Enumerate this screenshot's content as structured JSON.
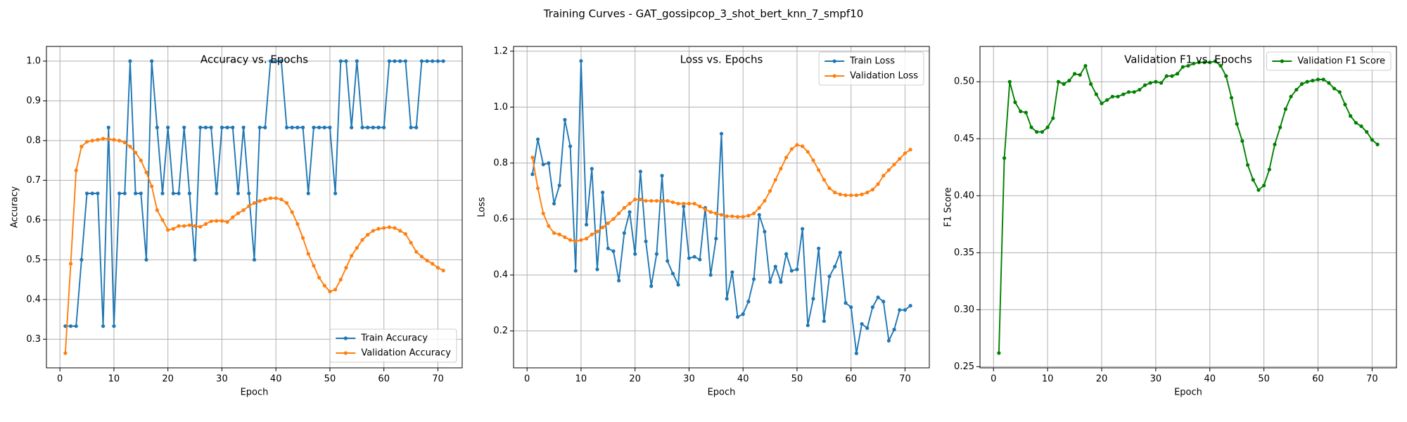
{
  "title": "Training Curves - GAT_gossipcop_3_shot_bert_knn_7_smpf10",
  "chart_data": [
    {
      "type": "line",
      "title": "Accuracy vs. Epochs",
      "xlabel": "Epoch",
      "ylabel": "Accuracy",
      "x": [
        1,
        2,
        3,
        4,
        5,
        6,
        7,
        8,
        9,
        10,
        11,
        12,
        13,
        14,
        15,
        16,
        17,
        18,
        19,
        20,
        21,
        22,
        23,
        24,
        25,
        26,
        27,
        28,
        29,
        30,
        31,
        32,
        33,
        34,
        35,
        36,
        37,
        38,
        39,
        40,
        41,
        42,
        43,
        44,
        45,
        46,
        47,
        48,
        49,
        50,
        51,
        52,
        53,
        54,
        55,
        56,
        57,
        58,
        59,
        60,
        61,
        62,
        63,
        64,
        65,
        66,
        67,
        68,
        69,
        70,
        71
      ],
      "series": [
        {
          "name": "Train Accuracy",
          "color": "#1f77b4",
          "values": [
            0.333,
            0.333,
            0.333,
            0.5,
            0.667,
            0.667,
            0.667,
            0.333,
            0.833,
            0.333,
            0.667,
            0.667,
            1.0,
            0.667,
            0.667,
            0.5,
            1.0,
            0.833,
            0.667,
            0.833,
            0.667,
            0.667,
            0.833,
            0.667,
            0.5,
            0.833,
            0.833,
            0.833,
            0.667,
            0.833,
            0.833,
            0.833,
            0.667,
            0.833,
            0.667,
            0.5,
            0.833,
            0.833,
            1.0,
            1.0,
            1.0,
            0.833,
            0.833,
            0.833,
            0.833,
            0.667,
            0.833,
            0.833,
            0.833,
            0.833,
            0.667,
            1.0,
            1.0,
            0.833,
            1.0,
            0.833,
            0.833,
            0.833,
            0.833,
            0.833,
            1.0,
            1.0,
            1.0,
            1.0,
            0.833,
            0.833,
            1.0,
            1.0,
            1.0,
            1.0,
            1.0
          ]
        },
        {
          "name": "Validation Accuracy",
          "color": "#ff7f0e",
          "values": [
            0.265,
            0.49,
            0.725,
            0.785,
            0.797,
            0.8,
            0.802,
            0.805,
            0.804,
            0.802,
            0.8,
            0.795,
            0.785,
            0.77,
            0.75,
            0.72,
            0.685,
            0.625,
            0.6,
            0.575,
            0.578,
            0.585,
            0.585,
            0.587,
            0.585,
            0.583,
            0.59,
            0.597,
            0.598,
            0.598,
            0.595,
            0.607,
            0.617,
            0.625,
            0.635,
            0.643,
            0.648,
            0.652,
            0.655,
            0.655,
            0.652,
            0.643,
            0.62,
            0.59,
            0.555,
            0.515,
            0.485,
            0.455,
            0.435,
            0.42,
            0.425,
            0.45,
            0.48,
            0.51,
            0.53,
            0.55,
            0.563,
            0.573,
            0.578,
            0.58,
            0.582,
            0.58,
            0.573,
            0.565,
            0.543,
            0.52,
            0.508,
            0.498,
            0.49,
            0.48,
            0.473
          ]
        }
      ],
      "xlim": [
        -2.5,
        74.5
      ],
      "ylim": [
        0.228,
        1.037
      ],
      "xticks": [
        0,
        10,
        20,
        30,
        40,
        50,
        60,
        70
      ],
      "yticks": [
        0.3,
        0.4,
        0.5,
        0.6,
        0.7,
        0.8,
        0.9,
        {
          "value": 1.0,
          "label": "1.0"
        }
      ],
      "grid": true,
      "legend": "lower right"
    },
    {
      "type": "line",
      "title": "Loss vs. Epochs",
      "xlabel": "Epoch",
      "ylabel": "Loss",
      "x": [
        1,
        2,
        3,
        4,
        5,
        6,
        7,
        8,
        9,
        10,
        11,
        12,
        13,
        14,
        15,
        16,
        17,
        18,
        19,
        20,
        21,
        22,
        23,
        24,
        25,
        26,
        27,
        28,
        29,
        30,
        31,
        32,
        33,
        34,
        35,
        36,
        37,
        38,
        39,
        40,
        41,
        42,
        43,
        44,
        45,
        46,
        47,
        48,
        49,
        50,
        51,
        52,
        53,
        54,
        55,
        56,
        57,
        58,
        59,
        60,
        61,
        62,
        63,
        64,
        65,
        66,
        67,
        68,
        69,
        70,
        71
      ],
      "series": [
        {
          "name": "Train Loss",
          "color": "#1f77b4",
          "values": [
            0.76,
            0.885,
            0.795,
            0.8,
            0.655,
            0.72,
            0.955,
            0.86,
            0.415,
            1.165,
            0.58,
            0.78,
            0.42,
            0.695,
            0.495,
            0.485,
            0.38,
            0.55,
            0.625,
            0.475,
            0.77,
            0.52,
            0.36,
            0.475,
            0.755,
            0.45,
            0.405,
            0.365,
            0.645,
            0.46,
            0.465,
            0.455,
            0.64,
            0.4,
            0.53,
            0.905,
            0.315,
            0.41,
            0.25,
            0.26,
            0.305,
            0.385,
            0.615,
            0.555,
            0.375,
            0.43,
            0.375,
            0.475,
            0.415,
            0.42,
            0.565,
            0.22,
            0.315,
            0.495,
            0.235,
            0.395,
            0.43,
            0.48,
            0.3,
            0.285,
            0.12,
            0.225,
            0.21,
            0.285,
            0.32,
            0.305,
            0.165,
            0.205,
            0.275,
            0.275,
            0.29
          ]
        },
        {
          "name": "Validation Loss",
          "color": "#ff7f0e",
          "values": [
            0.82,
            0.71,
            0.62,
            0.575,
            0.55,
            0.545,
            0.535,
            0.525,
            0.52,
            0.525,
            0.53,
            0.545,
            0.555,
            0.57,
            0.585,
            0.6,
            0.62,
            0.64,
            0.655,
            0.67,
            0.67,
            0.665,
            0.665,
            0.665,
            0.665,
            0.665,
            0.66,
            0.655,
            0.655,
            0.655,
            0.655,
            0.645,
            0.635,
            0.625,
            0.62,
            0.615,
            0.61,
            0.61,
            0.608,
            0.608,
            0.612,
            0.62,
            0.64,
            0.665,
            0.7,
            0.74,
            0.78,
            0.82,
            0.85,
            0.865,
            0.86,
            0.84,
            0.81,
            0.775,
            0.74,
            0.71,
            0.695,
            0.688,
            0.685,
            0.685,
            0.685,
            0.688,
            0.695,
            0.705,
            0.725,
            0.755,
            0.775,
            0.795,
            0.815,
            0.835,
            0.848
          ]
        }
      ],
      "xlim": [
        -2.5,
        74.5
      ],
      "ylim": [
        0.068,
        1.217
      ],
      "xticks": [
        0,
        10,
        20,
        30,
        40,
        50,
        60,
        70
      ],
      "yticks": [
        0.2,
        0.4,
        0.6,
        0.8,
        {
          "value": 1.0,
          "label": "1.0"
        },
        1.2
      ],
      "grid": true,
      "legend": "upper right"
    },
    {
      "type": "line",
      "title": "Validation F1 vs. Epochs",
      "xlabel": "Epoch",
      "ylabel": "F1 Score",
      "x": [
        1,
        2,
        3,
        4,
        5,
        6,
        7,
        8,
        9,
        10,
        11,
        12,
        13,
        14,
        15,
        16,
        17,
        18,
        19,
        20,
        21,
        22,
        23,
        24,
        25,
        26,
        27,
        28,
        29,
        30,
        31,
        32,
        33,
        34,
        35,
        36,
        37,
        38,
        39,
        40,
        41,
        42,
        43,
        44,
        45,
        46,
        47,
        48,
        49,
        50,
        51,
        52,
        53,
        54,
        55,
        56,
        57,
        58,
        59,
        60,
        61,
        62,
        63,
        64,
        65,
        66,
        67,
        68,
        69,
        70,
        71
      ],
      "series": [
        {
          "name": "Validation F1 Score",
          "color": "#008000",
          "values": [
            0.262,
            0.433,
            0.5,
            0.482,
            0.474,
            0.473,
            0.46,
            0.456,
            0.456,
            0.46,
            0.468,
            0.5,
            0.498,
            0.501,
            0.507,
            0.506,
            0.514,
            0.498,
            0.489,
            0.481,
            0.484,
            0.487,
            0.487,
            0.489,
            0.491,
            0.491,
            0.493,
            0.497,
            0.499,
            0.5,
            0.499,
            0.505,
            0.505,
            0.507,
            0.513,
            0.514,
            0.516,
            0.517,
            0.517,
            0.517,
            0.518,
            0.514,
            0.505,
            0.486,
            0.463,
            0.448,
            0.427,
            0.414,
            0.405,
            0.409,
            0.423,
            0.445,
            0.46,
            0.476,
            0.487,
            0.493,
            0.498,
            0.5,
            0.501,
            0.502,
            0.502,
            0.499,
            0.494,
            0.491,
            0.48,
            0.47,
            0.464,
            0.461,
            0.456,
            0.449,
            0.445
          ]
        }
      ],
      "xlim": [
        -2.5,
        74.5
      ],
      "ylim": [
        0.249,
        0.531
      ],
      "xticks": [
        0,
        10,
        20,
        30,
        40,
        50,
        60,
        70
      ],
      "yticks": [
        0.25,
        {
          "value": 0.3,
          "label": "0.30"
        },
        0.35,
        {
          "value": 0.4,
          "label": "0.40"
        },
        0.45,
        {
          "value": 0.5,
          "label": "0.50"
        }
      ],
      "grid": true,
      "legend": "upper right"
    }
  ]
}
